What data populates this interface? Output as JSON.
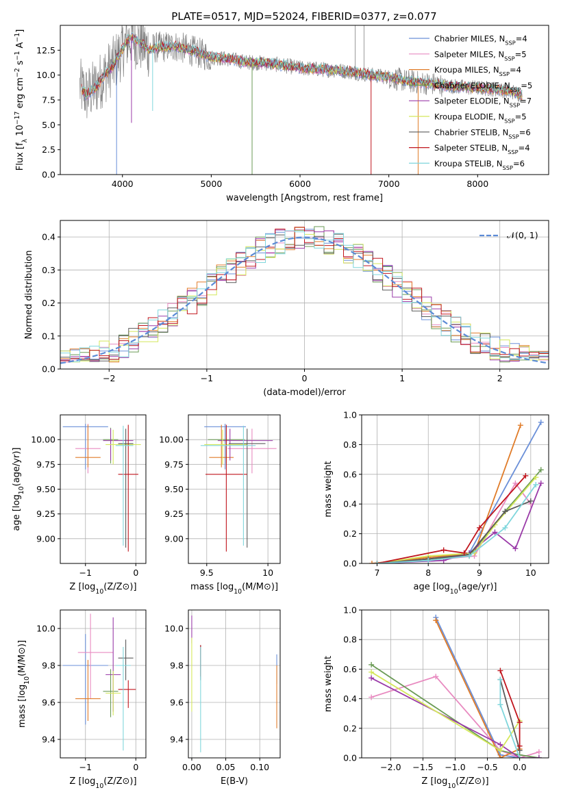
{
  "figure": {
    "title": "PLATE=0517, MJD=52024, FIBERID=0377, z=0.077"
  },
  "models": [
    {
      "name": "Chabrier MILES, N",
      "sub": "SSP",
      "suffix": "=4",
      "color": "#6a8fd8"
    },
    {
      "name": "Salpeter MILES, N",
      "sub": "SSP",
      "suffix": "=5",
      "color": "#e88ac0"
    },
    {
      "name": "Kroupa MILES, N",
      "sub": "SSP",
      "suffix": "=4",
      "color": "#e07b28"
    },
    {
      "name": "Chabrier ELODIE, N",
      "sub": "SSP",
      "suffix": "=5",
      "color": "#6a9a55"
    },
    {
      "name": "Salpeter ELODIE, N",
      "sub": "SSP",
      "suffix": "=7",
      "color": "#9a3aa8"
    },
    {
      "name": "Kroupa ELODIE, N",
      "sub": "SSP",
      "suffix": "=5",
      "color": "#d4e85a"
    },
    {
      "name": "Chabrier STELIB, N",
      "sub": "SSP",
      "suffix": "=6",
      "color": "#5a5a5a"
    },
    {
      "name": "Salpeter STELIB, N",
      "sub": "SSP",
      "suffix": "=4",
      "color": "#c0141c"
    },
    {
      "name": "Kroupa STELIB, N",
      "sub": "SSP",
      "suffix": "=6",
      "color": "#7fd6dc"
    }
  ],
  "chart_data": [
    {
      "id": "spectrum",
      "type": "line",
      "xlabel": "wavelength [Angstrom, rest frame]",
      "ylabel": "Flux [f_λ 10^-17 erg cm^-2 s^-1 A^-1]",
      "xlim": [
        3300,
        8800
      ],
      "ylim": [
        0,
        15
      ],
      "xticks": [
        4000,
        5000,
        6000,
        7000,
        8000
      ],
      "yticks": [
        0.0,
        2.5,
        5.0,
        7.5,
        10.0,
        12.5
      ],
      "legend": "upper-right",
      "data_color": "#808080",
      "continuum": {
        "x": [
          3520,
          3600,
          3700,
          3800,
          3900,
          4000,
          4050,
          4100,
          4200,
          4300,
          4400,
          4600,
          4800,
          5000,
          5200,
          5400,
          5600,
          5800,
          6000,
          6200,
          6400,
          6600,
          6800,
          7000,
          7200,
          7400,
          7600,
          7800,
          8000,
          8200,
          8400,
          8500
        ],
        "y": [
          8.8,
          8.0,
          8.8,
          10.0,
          11.0,
          12.6,
          13.4,
          13.8,
          13.2,
          12.6,
          12.8,
          12.9,
          12.4,
          11.8,
          11.6,
          11.3,
          11.2,
          11.0,
          10.7,
          10.6,
          10.5,
          10.3,
          10.0,
          9.8,
          9.4,
          9.2,
          9.0,
          8.8,
          8.7,
          8.6,
          8.3,
          8.0
        ]
      },
      "absorption_lines": [
        {
          "x": 3934,
          "y": 0.0
        },
        {
          "x": 4102,
          "y": 5.2
        },
        {
          "x": 4340,
          "y": 6.4
        },
        {
          "x": 5460,
          "y": 0.0
        },
        {
          "x": 6800,
          "y": 0.0
        },
        {
          "x": 7330,
          "y": 0.0
        }
      ],
      "spikes": [
        {
          "x": 6620,
          "y": 15.0
        },
        {
          "x": 6720,
          "y": 15.0
        }
      ]
    },
    {
      "id": "residuals",
      "type": "histogram",
      "xlabel": "(data-model)/error",
      "ylabel": "Normed distribution",
      "xlim": [
        -2.5,
        2.5
      ],
      "ylim": [
        0,
        0.45
      ],
      "xticks": [
        -2,
        -1,
        0,
        1,
        2
      ],
      "yticks": [
        0.0,
        0.1,
        0.2,
        0.3,
        0.4
      ],
      "bin_edges_start": -2.5,
      "bin_width": 0.1,
      "bins": 50,
      "reference": {
        "label": "𝒩(0, 1)",
        "mean": 0,
        "sigma": 1,
        "color": "#5b8bd6"
      },
      "legend": "upper-right"
    },
    {
      "id": "age_vs_Z",
      "type": "errorbar",
      "xlabel": "Z [log10(Z/Z⊙)]",
      "ylabel": "age  [log10(age/yr)]",
      "xlim": [
        -1.5,
        0.2
      ],
      "ylim": [
        8.75,
        10.25
      ],
      "xticks": [
        -1,
        0
      ],
      "yticks": [
        9.0,
        9.25,
        9.5,
        9.75,
        10.0
      ],
      "points": [
        {
          "model": 0,
          "x": -1.0,
          "xerr": [
            0.45,
            0.45
          ],
          "y": 10.13,
          "yerr": [
            0.43,
            0.03
          ]
        },
        {
          "model": 1,
          "x": -0.95,
          "xerr": [
            0.25,
            0.25
          ],
          "y": 9.91,
          "yerr": [
            0.25,
            0.25
          ]
        },
        {
          "model": 2,
          "x": -0.95,
          "xerr": [
            0.25,
            0.25
          ],
          "y": 9.82,
          "yerr": [
            0.1,
            0.33
          ]
        },
        {
          "model": 3,
          "x": -0.5,
          "xerr": [
            0.15,
            0.15
          ],
          "y": 10.0,
          "yerr": [
            0.24,
            0.12
          ]
        },
        {
          "model": 4,
          "x": -0.5,
          "xerr": [
            0.15,
            0.45
          ],
          "y": 9.99,
          "yerr": [
            0.2,
            0.12
          ]
        },
        {
          "model": 5,
          "x": -0.45,
          "xerr": [
            0.15,
            0.55
          ],
          "y": 9.95,
          "yerr": [
            0.2,
            0.15
          ]
        },
        {
          "model": 6,
          "x": -0.2,
          "xerr": [
            0.15,
            0.15
          ],
          "y": 9.96,
          "yerr": [
            1.05,
            0.15
          ]
        },
        {
          "model": 7,
          "x": -0.15,
          "xerr": [
            0.2,
            0.2
          ],
          "y": 9.65,
          "yerr": [
            0.78,
            0.5
          ]
        },
        {
          "model": 8,
          "x": -0.25,
          "xerr": [
            0.15,
            0.2
          ],
          "y": 9.94,
          "yerr": [
            1.01,
            0.2
          ]
        }
      ]
    },
    {
      "id": "age_vs_mass",
      "type": "errorbar",
      "xlabel": "mass [log10(M/M⊙)]",
      "ylabel": "",
      "xlim": [
        9.35,
        10.1
      ],
      "ylim": [
        8.75,
        10.25
      ],
      "xticks": [
        9.5,
        10.0
      ],
      "yticks": [
        9.0,
        9.25,
        9.5,
        9.75,
        10.0
      ],
      "points": [
        {
          "model": 0,
          "x": 9.65,
          "xerr": [
            0.17,
            0.17
          ],
          "y": 10.13,
          "yerr": [
            0.43,
            0.03
          ]
        },
        {
          "model": 1,
          "x": 9.87,
          "xerr": [
            0.2,
            0.2
          ],
          "y": 9.91,
          "yerr": [
            0.25,
            0.2
          ]
        },
        {
          "model": 2,
          "x": 9.62,
          "xerr": [
            0.1,
            0.1
          ],
          "y": 9.82,
          "yerr": [
            0.1,
            0.33
          ]
        },
        {
          "model": 3,
          "x": 9.66,
          "xerr": [
            0.15,
            0.15
          ],
          "y": 10.0,
          "yerr": [
            0.24,
            0.12
          ]
        },
        {
          "model": 4,
          "x": 9.69,
          "xerr": [
            0.1,
            0.35
          ],
          "y": 9.99,
          "yerr": [
            0.2,
            0.12
          ]
        },
        {
          "model": 5,
          "x": 9.63,
          "xerr": [
            0.15,
            0.2
          ],
          "y": 9.95,
          "yerr": [
            0.2,
            0.15
          ]
        },
        {
          "model": 6,
          "x": 9.83,
          "xerr": [
            0.15,
            0.15
          ],
          "y": 9.96,
          "yerr": [
            1.05,
            0.15
          ]
        },
        {
          "model": 7,
          "x": 9.66,
          "xerr": [
            0.17,
            0.17
          ],
          "y": 9.65,
          "yerr": [
            0.78,
            0.5
          ]
        },
        {
          "model": 8,
          "x": 9.8,
          "xerr": [
            0.35,
            0.1
          ],
          "y": 9.94,
          "yerr": [
            1.01,
            0.2
          ]
        }
      ]
    },
    {
      "id": "weight_vs_age",
      "type": "line",
      "xlabel": "age  [log10(age/yr)]",
      "ylabel": "mass weight",
      "xlim": [
        6.7,
        10.35
      ],
      "ylim": [
        0,
        1
      ],
      "xticks": [
        7,
        8,
        9,
        10
      ],
      "yticks": [
        0.0,
        0.2,
        0.4,
        0.6,
        0.8,
        1.0
      ],
      "series": [
        {
          "model": 0,
          "x": [
            7.0,
            8.0,
            8.8,
            10.2
          ],
          "y": [
            0.0,
            0.03,
            0.07,
            0.95
          ]
        },
        {
          "model": 1,
          "x": [
            7.0,
            8.0,
            8.9,
            9.7,
            10.0
          ],
          "y": [
            0.0,
            0.02,
            0.05,
            0.54,
            0.4
          ]
        },
        {
          "model": 2,
          "x": [
            6.9,
            8.0,
            8.9,
            9.8
          ],
          "y": [
            0.0,
            0.04,
            0.07,
            0.93
          ]
        },
        {
          "model": 3,
          "x": [
            7.0,
            8.0,
            8.8,
            9.5,
            10.2
          ],
          "y": [
            0.0,
            0.03,
            0.05,
            0.35,
            0.63
          ]
        },
        {
          "model": 4,
          "x": [
            7.0,
            8.3,
            8.8,
            9.3,
            9.7,
            10.2
          ],
          "y": [
            0.0,
            0.02,
            0.07,
            0.21,
            0.1,
            0.54
          ]
        },
        {
          "model": 5,
          "x": [
            7.0,
            8.0,
            8.9,
            9.3,
            10.1
          ],
          "y": [
            0.0,
            0.05,
            0.07,
            0.26,
            0.58
          ]
        },
        {
          "model": 6,
          "x": [
            7.0,
            8.0,
            8.8,
            9.5,
            10.0
          ],
          "y": [
            0.0,
            0.03,
            0.06,
            0.35,
            0.42
          ]
        },
        {
          "model": 7,
          "x": [
            7.0,
            8.3,
            8.7,
            9.0,
            9.9
          ],
          "y": [
            0.0,
            0.09,
            0.07,
            0.24,
            0.59
          ]
        },
        {
          "model": 8,
          "x": [
            7.0,
            8.0,
            8.8,
            9.5,
            10.1
          ],
          "y": [
            0.0,
            0.02,
            0.05,
            0.24,
            0.53
          ]
        }
      ]
    },
    {
      "id": "mass_vs_Z",
      "type": "errorbar",
      "xlabel": "Z [log10(Z/Z⊙)]",
      "ylabel": "mass [log10(M/M⊙)]",
      "xlim": [
        -1.5,
        0.2
      ],
      "ylim": [
        9.3,
        10.1
      ],
      "xticks": [
        -1,
        0
      ],
      "yticks": [
        9.4,
        9.6,
        9.8,
        10.0
      ],
      "points": [
        {
          "model": 0,
          "x": -1.0,
          "xerr": [
            0.45,
            0.45
          ],
          "y": 9.8,
          "yerr": [
            0.32,
            0.17
          ]
        },
        {
          "model": 1,
          "x": -0.9,
          "xerr": [
            0.25,
            0.45
          ],
          "y": 9.87,
          "yerr": [
            0.25,
            0.21
          ]
        },
        {
          "model": 2,
          "x": -0.95,
          "xerr": [
            0.25,
            0.25
          ],
          "y": 9.62,
          "yerr": [
            0.12,
            0.21
          ]
        },
        {
          "model": 3,
          "x": -0.5,
          "xerr": [
            0.15,
            0.15
          ],
          "y": 9.66,
          "yerr": [
            0.14,
            0.12
          ]
        },
        {
          "model": 4,
          "x": -0.45,
          "xerr": [
            0.15,
            0.15
          ],
          "y": 9.75,
          "yerr": [
            0.2,
            0.31
          ]
        },
        {
          "model": 5,
          "x": -0.45,
          "xerr": [
            0.15,
            0.15
          ],
          "y": 9.65,
          "yerr": [
            0.12,
            0.12
          ]
        },
        {
          "model": 6,
          "x": -0.2,
          "xerr": [
            0.15,
            0.15
          ],
          "y": 9.84,
          "yerr": [
            0.12,
            0.1
          ]
        },
        {
          "model": 7,
          "x": -0.15,
          "xerr": [
            0.2,
            0.15
          ],
          "y": 9.67,
          "yerr": [
            0.1,
            0.05
          ]
        },
        {
          "model": 8,
          "x": -0.25,
          "xerr": [
            0.15,
            0.15
          ],
          "y": 9.8,
          "yerr": [
            0.46,
            0.1
          ]
        }
      ]
    },
    {
      "id": "mass_vs_ebv",
      "type": "errorbar",
      "xlabel": "E(B-V)",
      "ylabel": "",
      "xlim": [
        -0.005,
        0.13
      ],
      "ylim": [
        9.3,
        10.1
      ],
      "xticks": [
        0.0,
        0.05,
        0.1
      ],
      "xtick_labels": [
        "0.00",
        "0.05",
        "0.10"
      ],
      "yticks": [
        9.4,
        9.6,
        9.8,
        10.0
      ],
      "points": [
        {
          "model": 0,
          "x": 0.125,
          "xerr": [
            0,
            0
          ],
          "y": 9.8,
          "yerr": [
            0.1,
            0.06
          ]
        },
        {
          "model": 2,
          "x": 0.125,
          "xerr": [
            0,
            0
          ],
          "y": 9.62,
          "yerr": [
            0.16,
            0.18
          ]
        },
        {
          "model": 4,
          "x": 0.0,
          "xerr": [
            0,
            0
          ],
          "y": 10.0,
          "yerr": [
            0.08,
            0.07
          ]
        },
        {
          "model": 5,
          "x": 0.0,
          "xerr": [
            0,
            0
          ],
          "y": 9.75,
          "yerr": [
            0.2,
            0.2
          ]
        },
        {
          "model": 6,
          "x": 0.013,
          "xerr": [
            0,
            0
          ],
          "y": 9.84,
          "yerr": [
            0.12,
            0.07
          ]
        },
        {
          "model": 7,
          "x": 0.013,
          "xerr": [
            0,
            0
          ],
          "y": 9.84,
          "yerr": [
            0.1,
            0.07
          ]
        },
        {
          "model": 8,
          "x": 0.013,
          "xerr": [
            0,
            0
          ],
          "y": 9.65,
          "yerr": [
            0.32,
            0.25
          ]
        }
      ]
    },
    {
      "id": "weight_vs_Z",
      "type": "line",
      "xlabel": "Z [log10(Z/Z⊙)]",
      "ylabel": "mass weight",
      "xlim": [
        -2.45,
        0.45
      ],
      "ylim": [
        0,
        1
      ],
      "xticks": [
        -2.0,
        -1.5,
        -1.0,
        -0.5,
        0.0
      ],
      "xtick_labels": [
        "−2.0",
        "−1.5",
        "−1.0",
        "−0.5",
        "0.0"
      ],
      "yticks": [
        0.0,
        0.2,
        0.4,
        0.6,
        0.8,
        1.0
      ],
      "series": [
        {
          "model": 0,
          "x": [
            -1.3,
            -0.3,
            0.0
          ],
          "y": [
            0.95,
            0.02,
            0.0
          ]
        },
        {
          "model": 1,
          "x": [
            -2.3,
            -1.3,
            -0.3,
            0.0,
            0.3
          ],
          "y": [
            0.41,
            0.55,
            0.05,
            0.0,
            0.04
          ]
        },
        {
          "model": 2,
          "x": [
            -1.3,
            -0.3,
            0.0
          ],
          "y": [
            0.93,
            0.0,
            0.06
          ]
        },
        {
          "model": 3,
          "x": [
            -2.3,
            -0.3,
            0.0,
            0.3
          ],
          "y": [
            0.63,
            0.05,
            0.02,
            0.0
          ]
        },
        {
          "model": 4,
          "x": [
            -2.3,
            -0.3,
            0.0,
            0.3
          ],
          "y": [
            0.54,
            0.09,
            0.0,
            0.0
          ]
        },
        {
          "model": 5,
          "x": [
            -2.3,
            -0.3,
            0.0
          ],
          "y": [
            0.58,
            0.05,
            0.25
          ]
        },
        {
          "model": 6,
          "x": [
            -0.3,
            0.0
          ],
          "y": [
            0.53,
            0.05
          ]
        },
        {
          "model": 7,
          "x": [
            -0.3,
            0.0,
            0.0
          ],
          "y": [
            0.59,
            0.24,
            0.08
          ]
        },
        {
          "model": 8,
          "x": [
            -0.3,
            -0.3,
            0.0
          ],
          "y": [
            0.53,
            0.36,
            0.0
          ]
        }
      ]
    }
  ]
}
